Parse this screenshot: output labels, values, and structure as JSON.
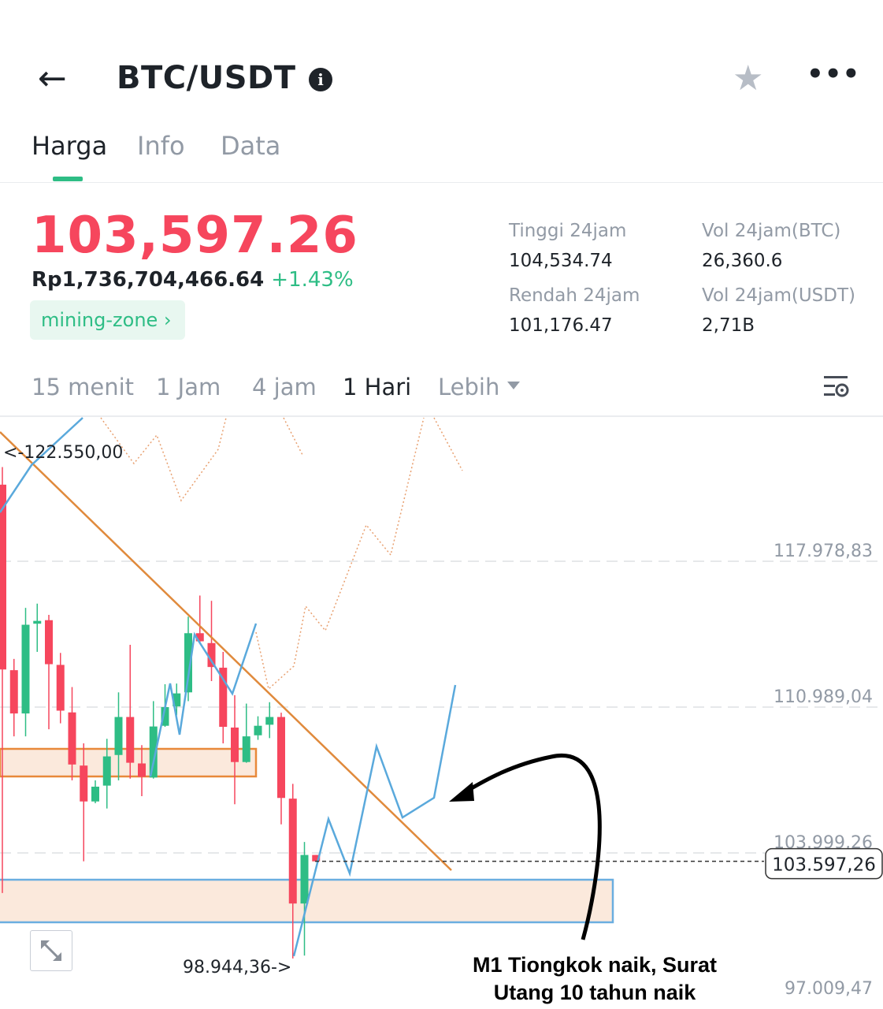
{
  "header": {
    "back_icon": "arrow-left-icon",
    "title": "BTC/USDT",
    "info_icon": "info-icon",
    "favorite_icon": "star-icon",
    "more_icon": "more-dots-icon"
  },
  "tabs": [
    {
      "label": "Harga",
      "active": true
    },
    {
      "label": "Info"
    },
    {
      "label": "Data"
    }
  ],
  "ticker": {
    "last_price": "103,597.26",
    "fiat_value": "Rp1,736,704,466.64",
    "change": "+1.43%",
    "tag": "mining-zone",
    "price_color": "#f6465d",
    "up_color": "#2ebd85",
    "stats": [
      {
        "label": "Tinggi 24jam",
        "value": "104,534.74"
      },
      {
        "label": "Vol 24jam(BTC)",
        "value": "26,360.6"
      },
      {
        "label": "Rendah 24jam",
        "value": "101,176.47"
      },
      {
        "label": "Vol 24jam(USDT)",
        "value": "2,71B"
      }
    ]
  },
  "timeframes": [
    {
      "label": "15 menit"
    },
    {
      "label": "1 Jam"
    },
    {
      "label": "4 jam"
    },
    {
      "label": "1 Hari",
      "active": true
    },
    {
      "label": "Lebih"
    }
  ],
  "chart_settings_icon": "chart-settings-icon",
  "chart_data": {
    "type": "candlestick",
    "y_tick_labels": [
      "117.978,83",
      "110.989,04",
      "103.999,26",
      "97.009,47"
    ],
    "y_ticks": [
      117978.83,
      110989.04,
      103999.26,
      97009.47
    ],
    "current_price_label": "103.597,26",
    "current_price": 103597.26,
    "high_marker": "<-122.550,00",
    "low_marker": "98.944,36->",
    "annotation": [
      "M1 Tiongkok naik, Surat",
      "Utang 10 tahun naik"
    ],
    "up_color": "#2ebd85",
    "down_color": "#f6465d",
    "candles": [
      {
        "o": 121650,
        "h": 122493,
        "l": 102080,
        "c": 112793
      },
      {
        "o": 112759,
        "h": 113299,
        "l": 109587,
        "c": 110684
      },
      {
        "o": 110684,
        "h": 115745,
        "l": 109587,
        "c": 114936
      },
      {
        "o": 114986,
        "h": 115948,
        "l": 113636,
        "c": 115121
      },
      {
        "o": 115155,
        "h": 115408,
        "l": 109925,
        "c": 113046
      },
      {
        "o": 113012,
        "h": 113586,
        "l": 110212,
        "c": 110819
      },
      {
        "o": 110735,
        "h": 111950,
        "l": 107479,
        "c": 108238
      },
      {
        "o": 108187,
        "h": 109250,
        "l": 103599,
        "c": 106467
      },
      {
        "o": 106467,
        "h": 107479,
        "l": 106382,
        "c": 107175
      },
      {
        "o": 107226,
        "h": 109470,
        "l": 106129,
        "c": 108626
      },
      {
        "o": 108694,
        "h": 111696,
        "l": 107479,
        "c": 110515
      },
      {
        "o": 110515,
        "h": 113974,
        "l": 107563,
        "c": 108322
      },
      {
        "o": 108289,
        "h": 109166,
        "l": 106720,
        "c": 107648
      },
      {
        "o": 107614,
        "h": 111275,
        "l": 107563,
        "c": 110060
      },
      {
        "o": 110094,
        "h": 112085,
        "l": 110043,
        "c": 110988
      },
      {
        "o": 111022,
        "h": 112118,
        "l": 110599,
        "c": 111646
      },
      {
        "o": 111696,
        "h": 115324,
        "l": 111275,
        "c": 114531
      },
      {
        "o": 114531,
        "h": 116336,
        "l": 114058,
        "c": 114143
      },
      {
        "o": 114058,
        "h": 116083,
        "l": 112236,
        "c": 112911
      },
      {
        "o": 112877,
        "h": 113636,
        "l": 109250,
        "c": 110043
      },
      {
        "o": 110009,
        "h": 111562,
        "l": 106332,
        "c": 108356
      },
      {
        "o": 108356,
        "h": 111157,
        "l": 108322,
        "c": 109587
      },
      {
        "o": 109638,
        "h": 110549,
        "l": 109419,
        "c": 110094
      },
      {
        "o": 110144,
        "h": 111224,
        "l": 109503,
        "c": 110515
      },
      {
        "o": 110515,
        "h": 110718,
        "l": 105370,
        "c": 106635
      },
      {
        "o": 106602,
        "h": 107311,
        "l": 98944,
        "c": 101575
      },
      {
        "o": 101575,
        "h": 104526,
        "l": 99078,
        "c": 103902
      },
      {
        "o": 103902,
        "h": 103902,
        "l": 103597,
        "c": 103597
      }
    ]
  },
  "expand_icon": "expand-icon"
}
